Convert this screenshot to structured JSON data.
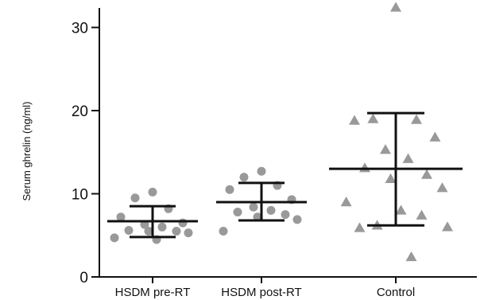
{
  "chart_data": {
    "type": "scatter",
    "title": "",
    "xlabel": "",
    "ylabel": "Serum ghrelin (ng/ml)",
    "ylim": [
      0,
      33
    ],
    "yticks": [
      0,
      10,
      20,
      30
    ],
    "grid": false,
    "categories": [
      "HSDM pre-RT",
      "HSDM post-RT",
      "Control"
    ],
    "colors": {
      "points": "#999999",
      "error_bars": "#111111",
      "axis": "#111111"
    },
    "series": [
      {
        "category": "HSDM pre-RT",
        "marker": "circle",
        "values": [
          10.2,
          9.5,
          8.2,
          7.2,
          6.5,
          6.3,
          6.0,
          5.6,
          5.5,
          5.5,
          5.3,
          4.7,
          4.5
        ],
        "mean": 6.7,
        "sd": [
          4.8,
          8.5
        ]
      },
      {
        "category": "HSDM post-RT",
        "marker": "circle",
        "values": [
          12.7,
          12.0,
          11.0,
          10.5,
          9.3,
          8.4,
          8.0,
          7.8,
          7.5,
          7.2,
          6.9,
          5.5
        ],
        "mean": 9.0,
        "sd": [
          6.8,
          11.3
        ]
      },
      {
        "category": "Control",
        "marker": "triangle",
        "values": [
          32.4,
          19.0,
          18.9,
          18.8,
          16.8,
          15.3,
          14.2,
          13.1,
          12.3,
          11.8,
          10.7,
          9.0,
          8.0,
          7.4,
          6.2,
          6.0,
          5.9,
          2.4
        ],
        "mean": 13.0,
        "sd": [
          6.2,
          19.7
        ]
      }
    ]
  }
}
